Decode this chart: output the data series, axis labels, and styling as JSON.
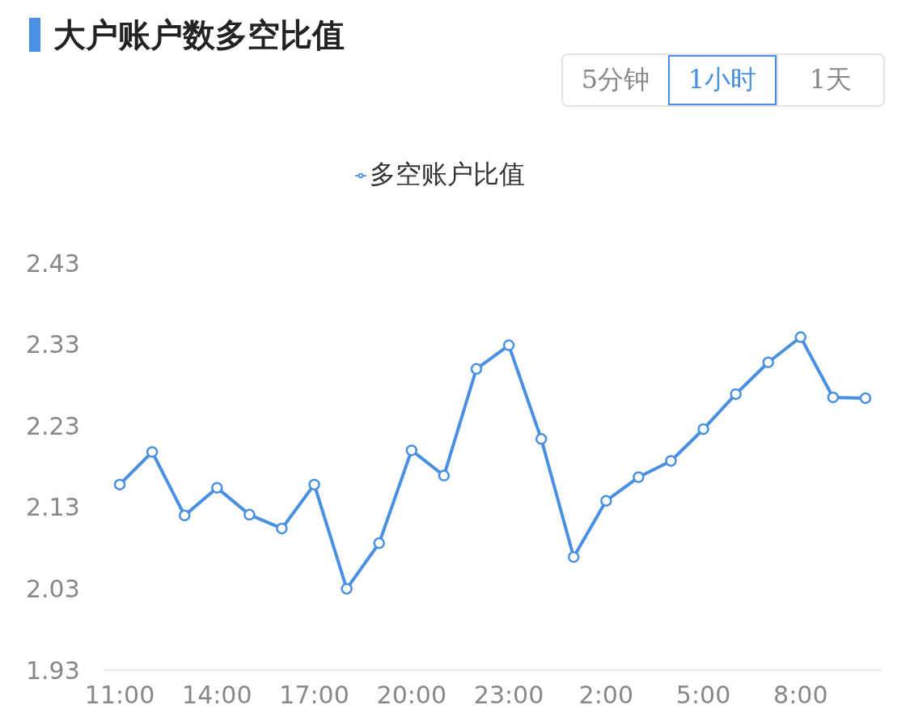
{
  "chart_data": {
    "type": "line",
    "title": "大户账户数多空比值",
    "annotations": [
      "5分钟",
      "1小时",
      "1天"
    ],
    "categories": [
      "11:00",
      null,
      null,
      "14:00",
      null,
      null,
      "17:00",
      null,
      null,
      "20:00",
      null,
      null,
      "23:00",
      null,
      null,
      "2:00",
      null,
      null,
      "5:00",
      null,
      null,
      "8:00",
      null,
      null
    ],
    "series": [
      {
        "name": "多空账户比值",
        "color": "#4a90e2",
        "values": [
          2.158,
          2.198,
          2.12,
          2.154,
          2.121,
          2.104,
          2.158,
          2.03,
          2.086,
          2.2,
          2.169,
          2.3,
          2.329,
          2.214,
          2.069,
          2.138,
          2.167,
          2.187,
          2.226,
          2.269,
          2.308,
          2.339,
          2.265,
          2.264
        ]
      }
    ],
    "ylim": [
      1.93,
      2.43
    ],
    "yticks": [
      1.93,
      2.03,
      2.13,
      2.23,
      2.33,
      2.43
    ],
    "grid": false,
    "legend": "top",
    "marker": "circle",
    "line_style": "solid"
  }
}
